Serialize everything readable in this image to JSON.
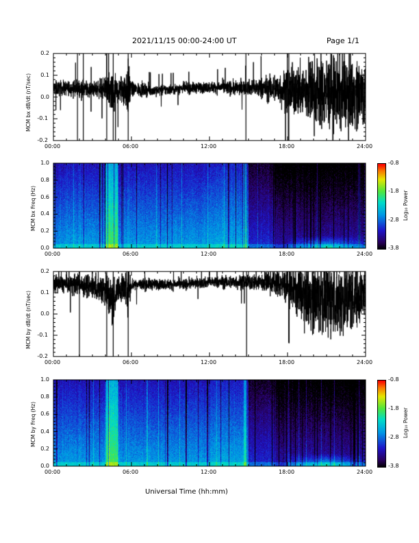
{
  "header": {
    "title": "2021/11/15  00:00-24:00 UT",
    "page": "Page 1/1"
  },
  "xaxis": {
    "title": "Universal Time (hh:mm)",
    "ticks": [
      "00:00",
      "06:00",
      "12:00",
      "18:00",
      "24:00"
    ],
    "range_hours": [
      0,
      24
    ]
  },
  "colorbar": {
    "label": "Log₁₀ Power",
    "ticks": [
      "-0.8",
      "-1.8",
      "-2.8",
      "-3.8"
    ],
    "range": [
      -3.8,
      -0.8
    ]
  },
  "chart_data": [
    {
      "type": "line",
      "ylabel": "MCM bx dB/dt (nT/sec)",
      "ylim": [
        -0.2,
        0.2
      ],
      "yticks": [
        "0.2",
        "0.1",
        "0.0",
        "-0.1",
        "-0.2"
      ],
      "x_hours": [
        0,
        1,
        2,
        3,
        4,
        4.5,
        5,
        5.8,
        6,
        8,
        10,
        12,
        13,
        14,
        15,
        15.5,
        16,
        17,
        18,
        19,
        20,
        21,
        22,
        23,
        24
      ],
      "y_center": [
        0.04,
        0.04,
        0.04,
        0.035,
        0.04,
        0.0,
        0.03,
        0.04,
        0.035,
        0.03,
        0.04,
        0.045,
        0.045,
        0.04,
        0.045,
        0.04,
        0.04,
        0.04,
        0.03,
        0.03,
        0.02,
        0.02,
        0.02,
        0.02,
        0.02
      ],
      "y_amplitude": [
        0.04,
        0.04,
        0.05,
        0.04,
        0.06,
        0.15,
        0.06,
        0.15,
        0.04,
        0.03,
        0.03,
        0.03,
        0.035,
        0.04,
        0.04,
        0.05,
        0.06,
        0.08,
        0.12,
        0.15,
        0.2,
        0.2,
        0.2,
        0.2,
        0.18
      ]
    },
    {
      "type": "heatmap",
      "ylabel": "MCM bx Freq (Hz)",
      "ylim": [
        0.0,
        1.0
      ],
      "yticks": [
        "1.0",
        "0.8",
        "0.6",
        "0.4",
        "0.2",
        "0.0"
      ],
      "zlim": [
        -3.8,
        -0.8
      ]
    },
    {
      "type": "line",
      "ylabel": "MCM by dB/dt (nT/sec)",
      "ylim": [
        -0.2,
        0.2
      ],
      "yticks": [
        "0.2",
        "0.1",
        "0.0",
        "-0.1",
        "-0.2"
      ],
      "x_hours": [
        0,
        1,
        2,
        3,
        4,
        4.5,
        5,
        5.8,
        6,
        8,
        10,
        12,
        13,
        14,
        15,
        15.5,
        16,
        17,
        18,
        19,
        20,
        21,
        22,
        23,
        24
      ],
      "y_center": [
        0.14,
        0.14,
        0.14,
        0.13,
        0.12,
        0.05,
        0.12,
        0.13,
        0.14,
        0.14,
        0.14,
        0.15,
        0.15,
        0.15,
        0.15,
        0.15,
        0.15,
        0.15,
        0.13,
        0.1,
        0.08,
        0.08,
        0.07,
        0.08,
        0.1
      ],
      "y_amplitude": [
        0.05,
        0.05,
        0.06,
        0.07,
        0.1,
        0.15,
        0.06,
        0.15,
        0.04,
        0.03,
        0.03,
        0.03,
        0.035,
        0.04,
        0.04,
        0.05,
        0.06,
        0.07,
        0.1,
        0.15,
        0.2,
        0.22,
        0.22,
        0.2,
        0.15
      ]
    },
    {
      "type": "heatmap",
      "ylabel": "MCM by Freq (Hz)",
      "ylim": [
        0.0,
        1.0
      ],
      "yticks": [
        "1.0",
        "0.8",
        "0.6",
        "0.4",
        "0.2",
        "0.0"
      ],
      "zlim": [
        -3.8,
        -0.8
      ]
    }
  ]
}
